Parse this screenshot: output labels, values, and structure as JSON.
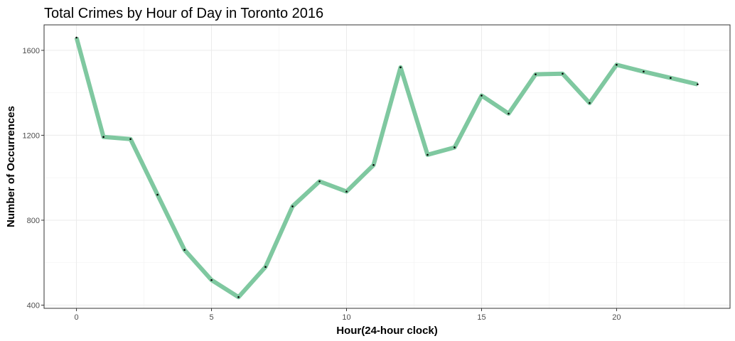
{
  "chart_data": {
    "type": "line",
    "title": "Total Crimes by Hour of Day in Toronto 2016",
    "xlabel": "Hour(24-hour clock)",
    "ylabel": "Number of Occurrences",
    "x": [
      0,
      1,
      2,
      3,
      4,
      5,
      6,
      7,
      8,
      9,
      10,
      11,
      12,
      13,
      14,
      15,
      16,
      17,
      18,
      19,
      20,
      21,
      22,
      23
    ],
    "values": [
      1660,
      1192,
      1182,
      920,
      660,
      518,
      438,
      580,
      865,
      983,
      935,
      1060,
      1520,
      1108,
      1143,
      1387,
      1302,
      1487,
      1490,
      1352,
      1532,
      1500,
      1470,
      1440
    ],
    "xlim": [
      -1.2,
      24.2
    ],
    "ylim": [
      385,
      1720
    ],
    "x_ticks": [
      0,
      5,
      10,
      15,
      20
    ],
    "x_tick_labels": [
      "0",
      "5",
      "10",
      "15",
      "20"
    ],
    "y_ticks": [
      400,
      800,
      1200,
      1600
    ],
    "y_tick_labels": [
      "400",
      "800",
      "1200",
      "1600"
    ],
    "grid": true,
    "line_color": "#7fc8a0",
    "point_color": "#000000"
  }
}
